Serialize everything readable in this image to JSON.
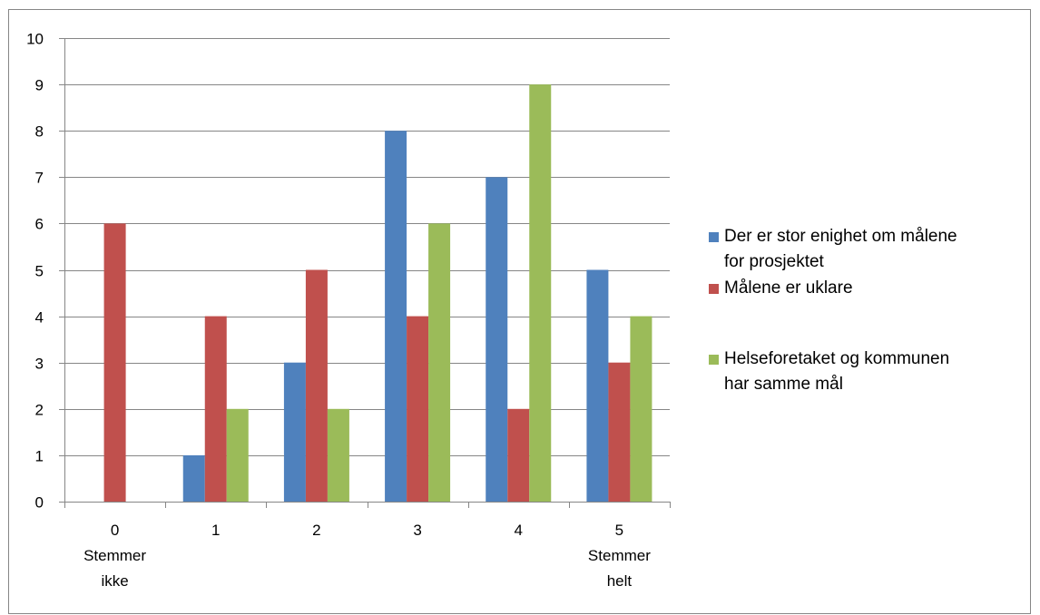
{
  "chart_data": {
    "type": "bar",
    "categories": [
      [
        "0",
        "Stemmer",
        "ikke"
      ],
      [
        "1"
      ],
      [
        "2"
      ],
      [
        "3"
      ],
      [
        "4"
      ],
      [
        "5",
        "Stemmer",
        "helt"
      ]
    ],
    "series": [
      {
        "name": "Der er stor enighet om målene for prosjektet",
        "legend_lines": [
          "Der er stor enighet om målene",
          "for prosjektet"
        ],
        "color": "#4F81BD",
        "values": [
          0,
          1,
          3,
          8,
          7,
          5
        ]
      },
      {
        "name": "Målene er uklare",
        "legend_lines": [
          "Målene er uklare"
        ],
        "color": "#C0504D",
        "values": [
          6,
          4,
          5,
          4,
          2,
          3
        ]
      },
      {
        "name": "Helseforetaket og kommunen har samme mål",
        "legend_lines": [
          "Helseforetaket og kommunen",
          "har samme mål"
        ],
        "color": "#9BBB59",
        "values": [
          0,
          2,
          2,
          6,
          9,
          4
        ]
      }
    ],
    "y_ticks": [
      "0",
      "1",
      "2",
      "3",
      "4",
      "5",
      "6",
      "7",
      "8",
      "9",
      "10"
    ],
    "ylim": [
      0,
      10
    ],
    "title": "",
    "xlabel": "",
    "ylabel": "",
    "grid": true,
    "legend_position": "right"
  }
}
